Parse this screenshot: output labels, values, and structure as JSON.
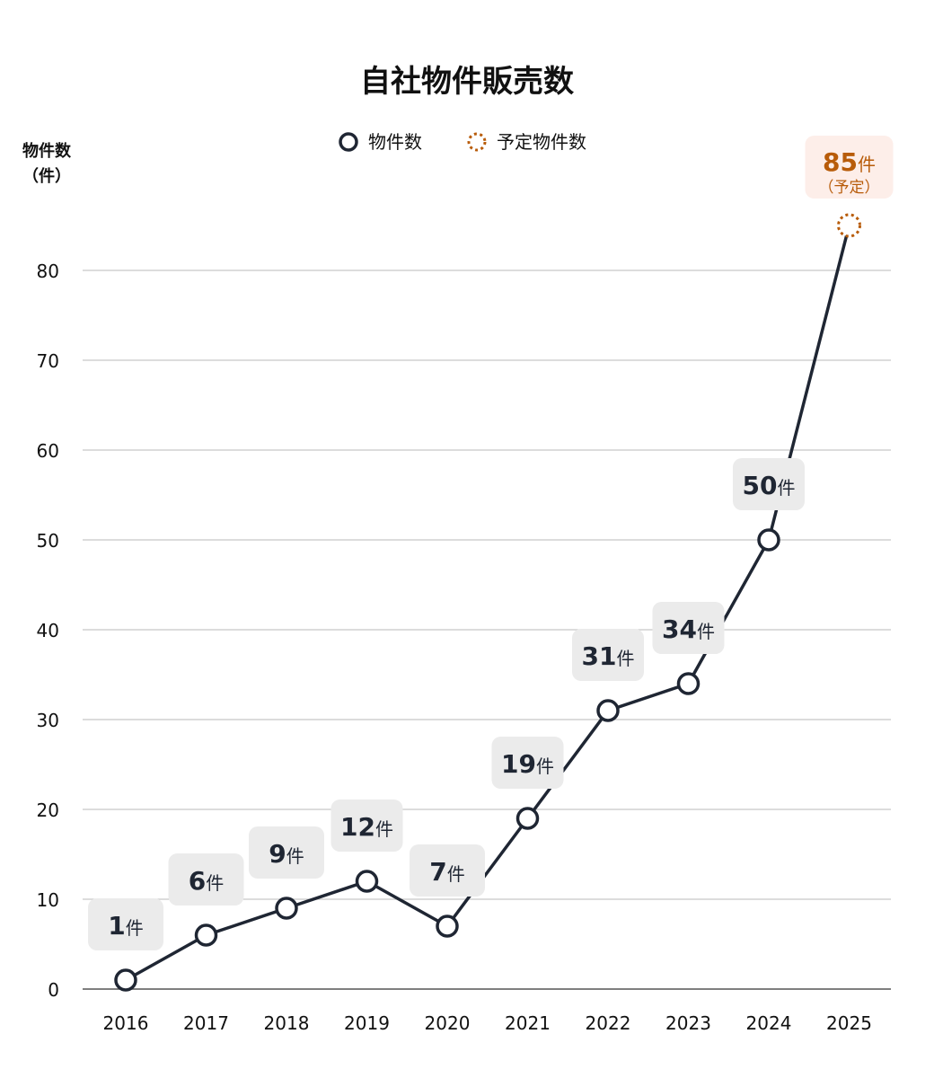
{
  "chart_data": {
    "type": "line",
    "title": "自社物件販売数",
    "ylabel": "物件数",
    "ylabel_unit": "（件）",
    "ylim": [
      0,
      80
    ],
    "yticks": [
      0,
      10,
      20,
      30,
      40,
      50,
      60,
      70,
      80
    ],
    "grid": true,
    "legend_placement": "top-center",
    "categories": [
      "2016",
      "2017",
      "2018",
      "2019",
      "2020",
      "2021",
      "2022",
      "2023",
      "2024",
      "2025"
    ],
    "series": [
      {
        "name": "物件数",
        "values": [
          1,
          6,
          9,
          12,
          7,
          19,
          31,
          34,
          50,
          null
        ],
        "color": "#1f2633"
      },
      {
        "name": "予定物件数",
        "values": [
          null,
          null,
          null,
          null,
          null,
          null,
          null,
          null,
          50,
          85
        ],
        "color": "#b85c0a",
        "style": "dashed-marker"
      }
    ],
    "data_labels": [
      {
        "value": "1",
        "unit": "件"
      },
      {
        "value": "6",
        "unit": "件"
      },
      {
        "value": "9",
        "unit": "件"
      },
      {
        "value": "12",
        "unit": "件"
      },
      {
        "value": "7",
        "unit": "件"
      },
      {
        "value": "19",
        "unit": "件"
      },
      {
        "value": "31",
        "unit": "件"
      },
      {
        "value": "34",
        "unit": "件"
      },
      {
        "value": "50",
        "unit": "件"
      },
      {
        "value": "85",
        "unit": "件",
        "note": "（予定）"
      }
    ],
    "colors": {
      "line": "#1f2633",
      "forecast": "#b85c0a",
      "label_bg": "#ebebeb",
      "forecast_label_bg": "#fdeee9",
      "grid": "#c8c8c8"
    }
  }
}
